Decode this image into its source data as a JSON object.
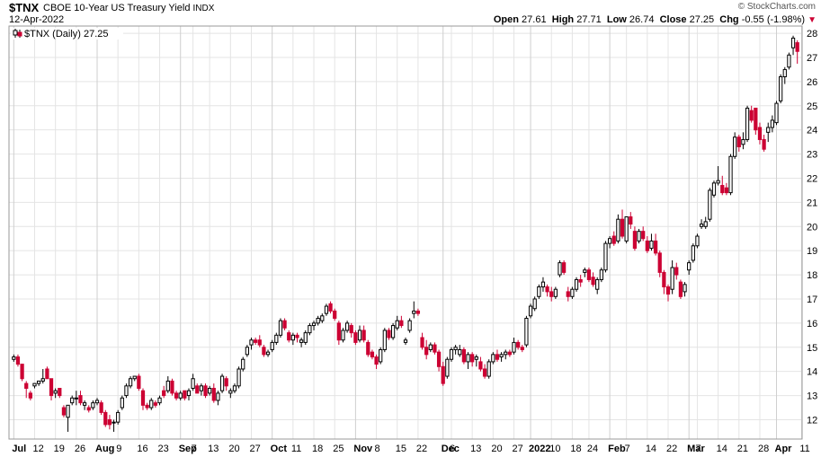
{
  "header": {
    "symbol": "$TNX",
    "name": "CBOE 10-Year US Treasury Yield",
    "exchange": "INDX",
    "date": "12-Apr-2022",
    "copyright": "© StockCharts.com",
    "open_label": "Open",
    "open": "27.61",
    "high_label": "High",
    "high": "27.71",
    "low_label": "Low",
    "low": "26.74",
    "close_label": "Close",
    "close": "27.25",
    "chg_label": "Chg",
    "chg": "-0.55 (-1.98%)"
  },
  "legend": {
    "text": "$TNX (Daily) 27.25"
  },
  "colors": {
    "up": "#ffffff",
    "down": "#cc0033",
    "outline": "#000000",
    "grid": "#e4e4e4"
  },
  "chart_data": {
    "type": "candlestick",
    "ylim": [
      11.2,
      28.3
    ],
    "y_ticks": [
      12,
      13,
      14,
      15,
      16,
      17,
      18,
      19,
      20,
      21,
      22,
      23,
      24,
      25,
      26,
      27,
      28
    ],
    "x_ticks": [
      {
        "label": "Jul",
        "bold": true,
        "i": 0
      },
      {
        "label": "12",
        "bold": false,
        "i": 5
      },
      {
        "label": "19",
        "bold": false,
        "i": 10
      },
      {
        "label": "26",
        "bold": false,
        "i": 15
      },
      {
        "label": "Aug",
        "bold": true,
        "i": 20
      },
      {
        "label": "9",
        "bold": false,
        "i": 25
      },
      {
        "label": "16",
        "bold": false,
        "i": 30
      },
      {
        "label": "23",
        "bold": false,
        "i": 35
      },
      {
        "label": "Sep",
        "bold": true,
        "i": 40
      },
      {
        "label": "7",
        "bold": false,
        "i": 43
      },
      {
        "label": "13",
        "bold": false,
        "i": 47
      },
      {
        "label": "20",
        "bold": false,
        "i": 52
      },
      {
        "label": "27",
        "bold": false,
        "i": 57
      },
      {
        "label": "Oct",
        "bold": true,
        "i": 62
      },
      {
        "label": "11",
        "bold": false,
        "i": 67
      },
      {
        "label": "18",
        "bold": false,
        "i": 72
      },
      {
        "label": "25",
        "bold": false,
        "i": 77
      },
      {
        "label": "Nov",
        "bold": true,
        "i": 82
      },
      {
        "label": "8",
        "bold": false,
        "i": 87
      },
      {
        "label": "15",
        "bold": false,
        "i": 92
      },
      {
        "label": "22",
        "bold": false,
        "i": 97
      },
      {
        "label": "Dec",
        "bold": true,
        "i": 103
      },
      {
        "label": "6",
        "bold": false,
        "i": 105
      },
      {
        "label": "13",
        "bold": false,
        "i": 110
      },
      {
        "label": "20",
        "bold": false,
        "i": 115
      },
      {
        "label": "27",
        "bold": false,
        "i": 120
      },
      {
        "label": "2022",
        "bold": true,
        "i": 124
      },
      {
        "label": "10",
        "bold": false,
        "i": 129
      },
      {
        "label": "18",
        "bold": false,
        "i": 134
      },
      {
        "label": "24",
        "bold": false,
        "i": 138
      },
      {
        "label": "Feb",
        "bold": true,
        "i": 143
      },
      {
        "label": "7",
        "bold": false,
        "i": 147
      },
      {
        "label": "14",
        "bold": false,
        "i": 152
      },
      {
        "label": "22",
        "bold": false,
        "i": 157
      },
      {
        "label": "Mar",
        "bold": true,
        "i": 162
      },
      {
        "label": "7",
        "bold": false,
        "i": 164
      },
      {
        "label": "14",
        "bold": false,
        "i": 169
      },
      {
        "label": "21",
        "bold": false,
        "i": 174
      },
      {
        "label": "28",
        "bold": false,
        "i": 179
      },
      {
        "label": "Apr",
        "bold": true,
        "i": 183
      },
      {
        "label": "11",
        "bold": false,
        "i": 189
      }
    ],
    "candles": [
      [
        14.5,
        14.7,
        14.4,
        14.6
      ],
      [
        14.6,
        14.7,
        14.2,
        14.3
      ],
      [
        14.3,
        14.3,
        13.6,
        13.7
      ],
      [
        13.5,
        13.6,
        12.9,
        13.3
      ],
      [
        13.1,
        13.2,
        12.8,
        12.9
      ],
      [
        13.4,
        13.5,
        13.3,
        13.5
      ],
      [
        13.5,
        13.6,
        13.4,
        13.6
      ],
      [
        13.6,
        14.1,
        13.5,
        13.7
      ],
      [
        14.1,
        14.2,
        13.7,
        13.7
      ],
      [
        13.7,
        13.7,
        12.8,
        13.0
      ],
      [
        13.1,
        13.3,
        12.9,
        13.2
      ],
      [
        13.3,
        13.3,
        12.9,
        13.0
      ],
      [
        12.5,
        12.6,
        12.1,
        12.2
      ],
      [
        12.1,
        12.6,
        11.5,
        12.6
      ],
      [
        12.7,
        13.0,
        12.6,
        12.9
      ],
      [
        12.9,
        13.2,
        12.6,
        12.9
      ],
      [
        13.0,
        13.2,
        12.6,
        12.7
      ],
      [
        12.6,
        12.8,
        12.4,
        12.7
      ],
      [
        12.5,
        12.6,
        12.3,
        12.4
      ],
      [
        12.5,
        12.8,
        12.4,
        12.7
      ],
      [
        12.7,
        12.9,
        12.6,
        12.8
      ],
      [
        12.7,
        12.8,
        12.2,
        12.3
      ],
      [
        12.3,
        12.4,
        11.7,
        11.8
      ],
      [
        12.0,
        12.2,
        11.6,
        11.8
      ],
      [
        11.9,
        12.0,
        11.5,
        11.9
      ],
      [
        11.9,
        12.4,
        11.8,
        12.3
      ],
      [
        12.5,
        13.0,
        12.4,
        12.9
      ],
      [
        13.0,
        13.5,
        12.9,
        13.4
      ],
      [
        13.4,
        13.8,
        13.3,
        13.7
      ],
      [
        13.7,
        13.8,
        13.6,
        13.8
      ],
      [
        13.8,
        13.9,
        13.2,
        13.3
      ],
      [
        13.2,
        13.3,
        12.4,
        12.6
      ],
      [
        12.6,
        12.7,
        12.4,
        12.5
      ],
      [
        12.5,
        12.9,
        12.4,
        12.8
      ],
      [
        12.7,
        12.8,
        12.5,
        12.6
      ],
      [
        12.7,
        13.0,
        12.6,
        12.9
      ],
      [
        13.2,
        13.4,
        12.9,
        13.0
      ],
      [
        13.2,
        13.8,
        13.1,
        13.6
      ],
      [
        13.6,
        13.7,
        13.0,
        13.1
      ],
      [
        13.1,
        13.2,
        12.8,
        12.9
      ],
      [
        12.9,
        13.2,
        12.8,
        13.1
      ],
      [
        13.2,
        13.2,
        12.8,
        12.9
      ],
      [
        13.0,
        13.3,
        12.8,
        13.2
      ],
      [
        13.3,
        13.9,
        13.2,
        13.7
      ],
      [
        13.4,
        13.5,
        13.1,
        13.1
      ],
      [
        13.2,
        13.5,
        13.0,
        13.4
      ],
      [
        13.4,
        13.5,
        12.9,
        13.0
      ],
      [
        13.1,
        13.4,
        13.0,
        13.3
      ],
      [
        13.3,
        13.5,
        12.7,
        12.8
      ],
      [
        12.8,
        13.2,
        12.6,
        13.1
      ],
      [
        13.2,
        13.9,
        13.1,
        13.8
      ],
      [
        13.7,
        13.8,
        13.2,
        13.4
      ],
      [
        13.1,
        13.3,
        12.9,
        13.2
      ],
      [
        13.2,
        13.5,
        13.1,
        13.4
      ],
      [
        13.4,
        14.2,
        13.3,
        14.1
      ],
      [
        14.1,
        14.6,
        14.0,
        14.5
      ],
      [
        14.7,
        15.1,
        14.6,
        15.0
      ],
      [
        15.1,
        15.4,
        14.9,
        15.3
      ],
      [
        15.3,
        15.4,
        15.1,
        15.2
      ],
      [
        15.3,
        15.5,
        15.0,
        15.1
      ],
      [
        15.0,
        15.1,
        14.6,
        14.7
      ],
      [
        14.7,
        14.9,
        14.6,
        14.8
      ],
      [
        14.9,
        15.3,
        14.8,
        15.2
      ],
      [
        15.2,
        15.6,
        15.1,
        15.5
      ],
      [
        15.5,
        16.2,
        15.4,
        16.1
      ],
      [
        16.1,
        16.2,
        15.7,
        15.8
      ],
      [
        15.6,
        15.7,
        15.2,
        15.3
      ],
      [
        15.3,
        15.6,
        15.1,
        15.5
      ],
      [
        15.5,
        15.6,
        15.2,
        15.4
      ],
      [
        15.2,
        15.4,
        15.0,
        15.3
      ],
      [
        15.2,
        15.7,
        15.1,
        15.6
      ],
      [
        15.6,
        16.0,
        15.5,
        15.9
      ],
      [
        15.9,
        16.1,
        15.7,
        16.0
      ],
      [
        16.0,
        16.3,
        15.9,
        16.2
      ],
      [
        16.1,
        16.4,
        16.0,
        16.3
      ],
      [
        16.4,
        16.8,
        16.3,
        16.7
      ],
      [
        16.8,
        16.9,
        16.4,
        16.5
      ],
      [
        16.5,
        16.6,
        16.1,
        16.2
      ],
      [
        16.0,
        16.1,
        15.1,
        15.3
      ],
      [
        15.3,
        15.8,
        15.2,
        15.7
      ],
      [
        15.7,
        16.1,
        15.6,
        16.0
      ],
      [
        15.9,
        16.0,
        15.4,
        15.6
      ],
      [
        15.6,
        15.7,
        15.1,
        15.2
      ],
      [
        15.3,
        15.9,
        15.2,
        15.7
      ],
      [
        15.7,
        15.9,
        15.2,
        15.3
      ],
      [
        15.2,
        15.3,
        14.6,
        14.7
      ],
      [
        14.8,
        14.9,
        14.5,
        14.6
      ],
      [
        14.6,
        14.7,
        14.1,
        14.3
      ],
      [
        14.4,
        15.0,
        14.3,
        14.9
      ],
      [
        14.9,
        15.8,
        14.8,
        15.7
      ],
      [
        15.7,
        15.8,
        15.3,
        15.4
      ],
      [
        15.4,
        16.0,
        15.3,
        15.9
      ],
      [
        15.8,
        16.3,
        15.7,
        16.1
      ],
      [
        16.1,
        16.3,
        15.8,
        15.9
      ],
      [
        15.2,
        15.4,
        15.1,
        15.3
      ],
      [
        15.7,
        16.2,
        15.6,
        16.1
      ],
      [
        16.4,
        16.9,
        16.2,
        16.5
      ],
      [
        16.5,
        16.6,
        16.3,
        16.4
      ],
      [
        15.4,
        15.6,
        14.9,
        15.0
      ],
      [
        15.0,
        15.3,
        14.5,
        14.7
      ],
      [
        14.9,
        15.2,
        14.8,
        15.1
      ],
      [
        15.1,
        15.2,
        14.7,
        14.8
      ],
      [
        14.8,
        14.9,
        14.0,
        14.2
      ],
      [
        14.2,
        14.4,
        13.4,
        13.5
      ],
      [
        13.8,
        14.6,
        13.7,
        14.5
      ],
      [
        14.5,
        15.0,
        14.4,
        14.9
      ],
      [
        14.9,
        15.1,
        14.7,
        15.0
      ],
      [
        14.7,
        15.1,
        14.6,
        14.9
      ],
      [
        14.9,
        15.0,
        14.3,
        14.4
      ],
      [
        14.4,
        14.8,
        14.1,
        14.7
      ],
      [
        14.7,
        14.8,
        14.2,
        14.4
      ],
      [
        14.5,
        14.7,
        14.2,
        14.6
      ],
      [
        14.4,
        14.6,
        14.0,
        14.1
      ],
      [
        14.1,
        14.3,
        13.7,
        13.8
      ],
      [
        13.8,
        14.5,
        13.7,
        14.4
      ],
      [
        14.4,
        14.8,
        14.3,
        14.7
      ],
      [
        14.7,
        14.9,
        14.4,
        14.5
      ],
      [
        14.6,
        14.8,
        14.4,
        14.7
      ],
      [
        14.7,
        14.9,
        14.5,
        14.8
      ],
      [
        14.8,
        14.9,
        14.6,
        14.7
      ],
      [
        14.8,
        15.4,
        14.7,
        15.2
      ],
      [
        15.2,
        15.3,
        14.9,
        15.0
      ],
      [
        15.0,
        15.1,
        14.8,
        14.9
      ],
      [
        15.1,
        16.3,
        15.0,
        16.2
      ],
      [
        16.3,
        16.8,
        16.2,
        16.7
      ],
      [
        16.6,
        17.1,
        16.5,
        17.0
      ],
      [
        17.1,
        17.6,
        17.0,
        17.5
      ],
      [
        17.5,
        17.9,
        17.3,
        17.7
      ],
      [
        17.5,
        17.6,
        17.1,
        17.3
      ],
      [
        17.3,
        17.5,
        16.9,
        17.1
      ],
      [
        17.1,
        17.5,
        17.0,
        17.4
      ],
      [
        18.0,
        18.6,
        17.9,
        18.5
      ],
      [
        18.5,
        18.6,
        18.0,
        18.1
      ],
      [
        17.3,
        17.5,
        16.9,
        17.1
      ],
      [
        17.1,
        17.5,
        17.0,
        17.4
      ],
      [
        17.4,
        17.9,
        17.3,
        17.8
      ],
      [
        17.8,
        18.0,
        17.5,
        17.7
      ],
      [
        18.1,
        18.3,
        17.9,
        18.2
      ],
      [
        18.2,
        18.3,
        17.7,
        17.8
      ],
      [
        17.9,
        18.1,
        17.5,
        17.6
      ],
      [
        17.4,
        17.9,
        17.2,
        17.8
      ],
      [
        17.8,
        18.3,
        17.7,
        18.2
      ],
      [
        18.2,
        19.4,
        18.1,
        19.3
      ],
      [
        19.3,
        19.6,
        19.1,
        19.5
      ],
      [
        19.6,
        19.8,
        19.2,
        19.3
      ],
      [
        19.4,
        20.5,
        19.3,
        20.3
      ],
      [
        20.3,
        20.7,
        19.5,
        19.6
      ],
      [
        19.4,
        20.4,
        19.3,
        20.4
      ],
      [
        20.4,
        20.6,
        19.9,
        20.1
      ],
      [
        19.8,
        20.0,
        19.0,
        19.1
      ],
      [
        19.4,
        19.9,
        19.3,
        19.8
      ],
      [
        19.8,
        20.0,
        19.4,
        19.5
      ],
      [
        19.4,
        19.6,
        18.9,
        19.0
      ],
      [
        19.1,
        19.7,
        19.0,
        19.4
      ],
      [
        19.4,
        19.7,
        18.8,
        18.9
      ],
      [
        18.9,
        19.0,
        17.9,
        18.1
      ],
      [
        18.1,
        18.2,
        17.2,
        17.5
      ],
      [
        17.5,
        17.6,
        16.9,
        17.2
      ],
      [
        17.4,
        18.6,
        17.2,
        18.3
      ],
      [
        18.3,
        18.5,
        17.8,
        18.0
      ],
      [
        17.7,
        17.8,
        17.0,
        17.1
      ],
      [
        17.3,
        17.7,
        17.1,
        17.6
      ],
      [
        18.2,
        18.6,
        18.0,
        18.5
      ],
      [
        18.6,
        19.3,
        18.5,
        19.2
      ],
      [
        19.2,
        19.7,
        19.1,
        19.6
      ],
      [
        20.0,
        20.3,
        19.9,
        20.1
      ],
      [
        20.0,
        20.4,
        19.9,
        20.2
      ],
      [
        20.3,
        21.6,
        20.2,
        21.5
      ],
      [
        21.3,
        21.9,
        21.2,
        21.8
      ],
      [
        21.8,
        22.5,
        21.7,
        21.9
      ],
      [
        21.7,
        22.1,
        21.3,
        21.4
      ],
      [
        21.6,
        21.8,
        21.3,
        21.4
      ],
      [
        21.4,
        23.0,
        21.3,
        22.9
      ],
      [
        22.9,
        23.9,
        22.8,
        23.7
      ],
      [
        23.7,
        23.8,
        23.1,
        23.3
      ],
      [
        23.4,
        23.9,
        23.2,
        23.6
      ],
      [
        23.6,
        25.0,
        23.5,
        24.9
      ],
      [
        24.8,
        25.0,
        24.3,
        24.4
      ],
      [
        24.9,
        24.9,
        23.8,
        24.0
      ],
      [
        24.1,
        24.3,
        23.4,
        23.6
      ],
      [
        23.6,
        23.8,
        23.1,
        23.2
      ],
      [
        23.9,
        24.3,
        23.5,
        24.1
      ],
      [
        24.1,
        24.6,
        23.9,
        24.4
      ],
      [
        24.3,
        25.2,
        24.2,
        25.1
      ],
      [
        25.2,
        26.3,
        25.1,
        26.2
      ],
      [
        26.2,
        26.6,
        25.9,
        26.5
      ],
      [
        26.6,
        27.2,
        26.5,
        27.1
      ],
      [
        27.4,
        27.9,
        27.1,
        27.8
      ],
      [
        27.61,
        27.71,
        26.74,
        27.25
      ]
    ]
  }
}
